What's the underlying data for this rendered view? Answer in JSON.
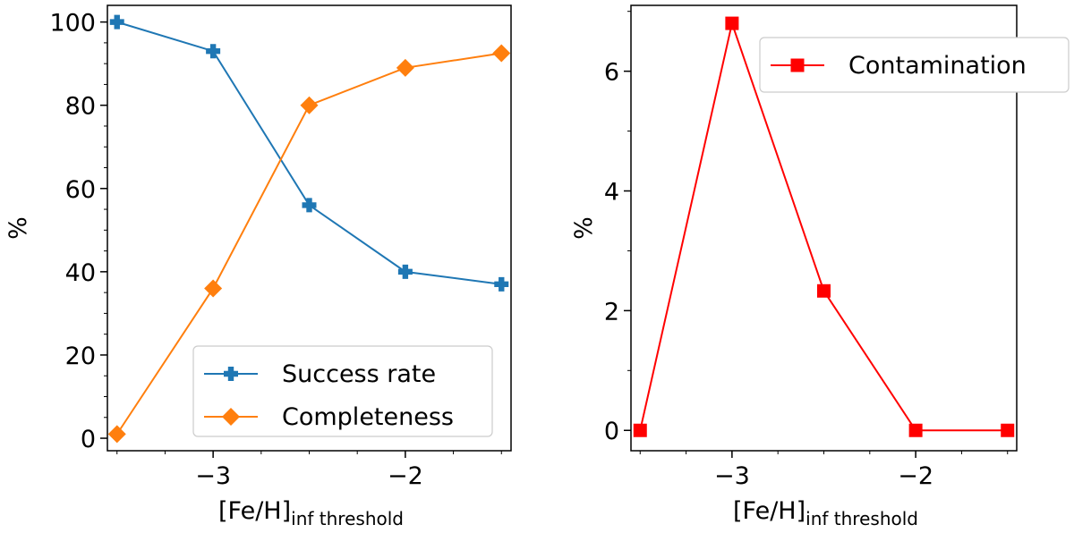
{
  "chart_data": [
    {
      "type": "line",
      "xlabel": "[Fe/H]",
      "xlabel_sub": "inf threshold",
      "ylabel": "%",
      "xlim": [
        -3.55,
        -1.45
      ],
      "ylim": [
        -3,
        104
      ],
      "xticks": [
        {
          "value": -3,
          "label": "−3"
        },
        {
          "value": -2,
          "label": "−2"
        }
      ],
      "yticks": [
        {
          "value": 0,
          "label": "0"
        },
        {
          "value": 20,
          "label": "20"
        },
        {
          "value": 40,
          "label": "40"
        },
        {
          "value": 60,
          "label": "60"
        },
        {
          "value": 80,
          "label": "80"
        },
        {
          "value": 100,
          "label": "100"
        }
      ],
      "x_minor_step": 0.25,
      "y_minor_step": 5,
      "legend_position": "lower-right",
      "series": [
        {
          "name": "Success rate",
          "marker": "plus",
          "color": "#1f77b4",
          "x": [
            -3.5,
            -3.0,
            -2.5,
            -2.0,
            -1.5
          ],
          "y": [
            100,
            93,
            56,
            40,
            37
          ]
        },
        {
          "name": "Completeness",
          "marker": "diamond",
          "color": "#ff7f0e",
          "x": [
            -3.5,
            -3.0,
            -2.5,
            -2.0,
            -1.5
          ],
          "y": [
            1,
            36,
            80,
            89,
            92.5
          ]
        }
      ]
    },
    {
      "type": "line",
      "xlabel": "[Fe/H]",
      "xlabel_sub": "inf threshold",
      "ylabel": "%",
      "xlim": [
        -3.55,
        -1.45
      ],
      "ylim": [
        -0.34,
        7.1
      ],
      "xticks": [
        {
          "value": -3,
          "label": "−3"
        },
        {
          "value": -2,
          "label": "−2"
        }
      ],
      "yticks": [
        {
          "value": 0,
          "label": "0"
        },
        {
          "value": 2,
          "label": "2"
        },
        {
          "value": 4,
          "label": "4"
        },
        {
          "value": 6,
          "label": "6"
        }
      ],
      "x_minor_step": 0.25,
      "y_minor_step": 1,
      "legend_position": "upper-right",
      "series": [
        {
          "name": "Contamination",
          "marker": "square",
          "color": "#ff0000",
          "x": [
            -3.5,
            -3.0,
            -2.5,
            -2.0,
            -1.5
          ],
          "y": [
            0,
            6.8,
            2.33,
            0,
            0
          ]
        }
      ]
    }
  ]
}
